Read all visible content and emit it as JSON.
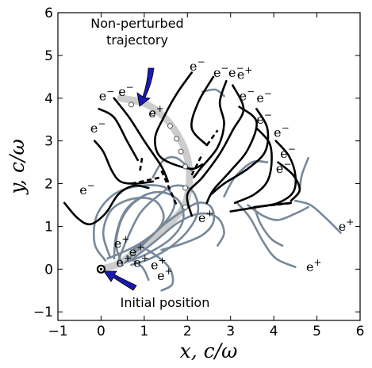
{
  "chart_data": {
    "type": "line",
    "title": "",
    "xlabel": "x,  c/ω",
    "ylabel": "y,  c/ω",
    "xlim": [
      -1,
      6
    ],
    "ylim": [
      -1.2,
      6
    ],
    "x_ticks": [
      "−1",
      "0",
      "1",
      "2",
      "3",
      "4",
      "5",
      "6"
    ],
    "y_ticks": [
      "−1",
      "0",
      "1",
      "2",
      "3",
      "4",
      "5",
      "6"
    ],
    "x_tick_values": [
      -1,
      0,
      1,
      2,
      3,
      4,
      5,
      6
    ],
    "y_tick_values": [
      -1,
      0,
      1,
      2,
      3,
      4,
      5,
      6
    ],
    "grid": false,
    "colors": {
      "electron": "#000000",
      "positron": "#778899",
      "unperturbed": "#cccccc",
      "arrow": "#1a1ab0"
    },
    "annotations": {
      "unperturbed": {
        "line1": "Non-perturbed",
        "line2": "trajectory"
      },
      "initial": "Initial position"
    },
    "initial_position": [
      0,
      0
    ],
    "unperturbed_trajectory": [
      [
        0,
        0
      ],
      [
        0.45,
        0.15
      ],
      [
        0.95,
        0.55
      ],
      [
        1.45,
        0.95
      ],
      [
        1.85,
        1.35
      ],
      [
        2.0,
        1.7
      ],
      [
        2.05,
        2.2
      ],
      [
        2.0,
        2.6
      ],
      [
        1.85,
        3.0
      ],
      [
        1.6,
        3.4
      ],
      [
        1.3,
        3.7
      ],
      [
        0.95,
        3.9
      ],
      [
        0.45,
        4.0
      ]
    ],
    "unperturbed_markers": [
      [
        0.7,
        3.85
      ],
      [
        1.2,
        3.65
      ],
      [
        1.6,
        3.35
      ],
      [
        1.75,
        3.05
      ],
      [
        1.85,
        2.75
      ],
      [
        1.95,
        2.4
      ],
      [
        1.95,
        1.9
      ],
      [
        1.95,
        1.45
      ]
    ],
    "electron_tracks": [
      [
        [
          -0.85,
          1.55
        ],
        [
          -0.55,
          1.2
        ],
        [
          -0.25,
          1.05
        ],
        [
          0.1,
          1.3
        ],
        [
          0.4,
          1.75
        ],
        [
          0.75,
          1.95
        ],
        [
          1.1,
          1.9
        ]
      ],
      [
        [
          -0.15,
          3.0
        ],
        [
          0.05,
          2.75
        ],
        [
          0.25,
          2.3
        ],
        [
          0.45,
          2.05
        ],
        [
          0.8,
          2.0
        ],
        [
          1.2,
          2.05
        ]
      ],
      [
        [
          -0.05,
          3.75
        ],
        [
          0.3,
          3.55
        ],
        [
          0.6,
          3.0
        ],
        [
          0.85,
          2.55
        ]
      ],
      [
        [
          0.3,
          4.0
        ],
        [
          0.65,
          3.55
        ],
        [
          1.0,
          3.0
        ],
        [
          1.4,
          2.4
        ],
        [
          1.55,
          2.05
        ]
      ],
      [
        [
          2.1,
          4.6
        ],
        [
          1.75,
          4.1
        ],
        [
          1.45,
          3.55
        ],
        [
          1.25,
          3.05
        ],
        [
          1.4,
          2.6
        ],
        [
          2.05,
          2.35
        ],
        [
          2.35,
          2.45
        ]
      ],
      [
        [
          2.6,
          4.5
        ],
        [
          2.25,
          3.9
        ],
        [
          2.1,
          3.3
        ],
        [
          2.45,
          2.9
        ]
      ],
      [
        [
          2.9,
          4.4
        ],
        [
          2.75,
          3.9
        ],
        [
          2.85,
          3.4
        ],
        [
          2.7,
          2.85
        ],
        [
          2.3,
          2.35
        ],
        [
          2.15,
          2.15
        ]
      ],
      [
        [
          3.05,
          4.3
        ],
        [
          3.3,
          3.75
        ],
        [
          3.05,
          3.25
        ],
        [
          2.75,
          2.7
        ],
        [
          2.35,
          2.15
        ],
        [
          2.0,
          1.75
        ],
        [
          2.1,
          1.25
        ]
      ],
      [
        [
          3.2,
          3.8
        ],
        [
          3.6,
          3.45
        ],
        [
          3.4,
          2.8
        ],
        [
          3.0,
          2.3
        ],
        [
          2.6,
          1.85
        ],
        [
          2.45,
          1.55
        ]
      ],
      [
        [
          3.6,
          3.75
        ],
        [
          3.85,
          3.3
        ],
        [
          3.8,
          2.75
        ],
        [
          3.4,
          2.35
        ],
        [
          2.85,
          2.0
        ],
        [
          2.55,
          1.75
        ]
      ],
      [
        [
          3.6,
          3.3
        ],
        [
          3.9,
          2.95
        ],
        [
          3.95,
          2.5
        ],
        [
          3.85,
          2.05
        ],
        [
          3.55,
          1.75
        ],
        [
          3.1,
          1.55
        ]
      ],
      [
        [
          4.05,
          3.0
        ],
        [
          4.35,
          2.65
        ],
        [
          4.5,
          2.2
        ],
        [
          4.45,
          1.8
        ],
        [
          4.1,
          1.55
        ],
        [
          3.6,
          1.45
        ],
        [
          3.0,
          1.35
        ]
      ],
      [
        [
          4.1,
          2.5
        ],
        [
          4.45,
          2.2
        ],
        [
          4.6,
          1.85
        ],
        [
          4.4,
          1.6
        ]
      ],
      [
        [
          4.4,
          1.55
        ],
        [
          3.95,
          1.5
        ],
        [
          3.55,
          1.45
        ]
      ]
    ],
    "electron_dashes": [
      [
        [
          0.7,
          2.0
        ],
        [
          1.4,
          2.15
        ]
      ],
      [
        [
          1.4,
          2.3
        ],
        [
          1.75,
          1.5
        ]
      ],
      [
        [
          0.95,
          2.6
        ],
        [
          0.9,
          2.3
        ]
      ],
      [
        [
          2.45,
          2.9
        ],
        [
          2.7,
          3.25
        ]
      ],
      [
        [
          2.1,
          2.2
        ],
        [
          2.35,
          2.7
        ]
      ],
      [
        [
          3.55,
          1.45
        ],
        [
          4.45,
          1.55
        ]
      ]
    ],
    "positron_tracks": [
      [
        [
          0.1,
          0.2
        ],
        [
          -0.15,
          0.6
        ],
        [
          -0.1,
          1.25
        ],
        [
          0.3,
          1.75
        ],
        [
          0.9,
          1.95
        ],
        [
          1.5,
          1.9
        ],
        [
          1.7,
          1.5
        ],
        [
          1.4,
          1.0
        ],
        [
          0.9,
          0.6
        ],
        [
          0.4,
          0.35
        ],
        [
          0.15,
          0.25
        ]
      ],
      [
        [
          0.2,
          0.3
        ],
        [
          0.05,
          0.85
        ],
        [
          0.25,
          1.4
        ],
        [
          0.75,
          1.65
        ],
        [
          1.25,
          1.6
        ],
        [
          1.45,
          1.2
        ],
        [
          1.2,
          0.8
        ],
        [
          0.75,
          0.45
        ]
      ],
      [
        [
          0.3,
          0.25
        ],
        [
          0.35,
          0.8
        ],
        [
          0.55,
          1.35
        ],
        [
          0.95,
          1.7
        ],
        [
          1.4,
          1.8
        ],
        [
          1.8,
          1.6
        ],
        [
          1.9,
          1.15
        ],
        [
          1.6,
          0.7
        ],
        [
          1.05,
          0.35
        ],
        [
          0.55,
          0.15
        ]
      ],
      [
        [
          0.4,
          0.2
        ],
        [
          0.6,
          0.7
        ],
        [
          0.9,
          1.3
        ],
        [
          1.3,
          1.7
        ],
        [
          1.7,
          1.95
        ],
        [
          2.1,
          1.85
        ],
        [
          2.25,
          1.4
        ],
        [
          2.05,
          0.95
        ],
        [
          1.65,
          0.55
        ],
        [
          1.15,
          0.25
        ],
        [
          0.7,
          0.1
        ]
      ],
      [
        [
          0.55,
          0.15
        ],
        [
          0.9,
          0.5
        ],
        [
          1.35,
          0.95
        ],
        [
          1.8,
          1.3
        ],
        [
          2.25,
          1.55
        ],
        [
          2.55,
          1.45
        ],
        [
          2.6,
          1.1
        ],
        [
          2.35,
          0.8
        ],
        [
          1.9,
          0.6
        ],
        [
          1.4,
          0.45
        ]
      ],
      [
        [
          0.75,
          0.25
        ],
        [
          1.25,
          0.65
        ],
        [
          1.8,
          1.1
        ],
        [
          2.3,
          1.3
        ],
        [
          2.7,
          1.2
        ],
        [
          2.85,
          0.85
        ],
        [
          2.7,
          0.55
        ]
      ],
      [
        [
          0.5,
          0.1
        ],
        [
          0.35,
          0.55
        ],
        [
          0.45,
          1.1
        ],
        [
          0.7,
          1.5
        ],
        [
          1.05,
          1.75
        ]
      ],
      [
        [
          0.9,
          0.55
        ],
        [
          1.3,
          0.3
        ],
        [
          1.6,
          0.0
        ],
        [
          1.65,
          -0.35
        ],
        [
          1.4,
          -0.5
        ]
      ],
      [
        [
          0.6,
          0.3
        ],
        [
          0.95,
          0.05
        ],
        [
          1.1,
          -0.25
        ]
      ],
      [
        [
          2.85,
          1.7
        ],
        [
          3.1,
          2.15
        ],
        [
          3.5,
          2.5
        ],
        [
          3.85,
          2.5
        ]
      ],
      [
        [
          2.1,
          2.3
        ],
        [
          1.75,
          2.6
        ],
        [
          1.45,
          2.55
        ],
        [
          1.2,
          2.15
        ]
      ],
      [
        [
          3.15,
          1.55
        ],
        [
          3.45,
          1.2
        ],
        [
          3.75,
          0.65
        ],
        [
          4.05,
          0.25
        ],
        [
          4.5,
          0.05
        ]
      ],
      [
        [
          3.4,
          1.5
        ],
        [
          3.75,
          1.25
        ],
        [
          4.1,
          1.15
        ],
        [
          4.5,
          1.3
        ],
        [
          4.8,
          1.45
        ]
      ],
      [
        [
          3.55,
          1.45
        ],
        [
          3.7,
          1.05
        ],
        [
          3.95,
          0.7
        ],
        [
          4.2,
          0.55
        ]
      ],
      [
        [
          4.5,
          1.6
        ],
        [
          4.85,
          1.5
        ],
        [
          5.2,
          1.2
        ],
        [
          5.55,
          0.85
        ]
      ],
      [
        [
          4.8,
          2.6
        ],
        [
          4.65,
          2.2
        ],
        [
          4.6,
          1.85
        ]
      ],
      [
        [
          2.35,
          4.15
        ],
        [
          2.65,
          4.2
        ],
        [
          2.85,
          4.05
        ]
      ]
    ],
    "labels": [
      {
        "text": "e",
        "sup": "−",
        "x": -0.5,
        "y": 1.75
      },
      {
        "text": "e",
        "sup": "−",
        "x": -0.25,
        "y": 3.2
      },
      {
        "text": "e",
        "sup": "−",
        "x": -0.05,
        "y": 3.95
      },
      {
        "text": "e",
        "sup": "−",
        "x": 0.4,
        "y": 4.05
      },
      {
        "text": "e",
        "sup": "+",
        "x": 1.1,
        "y": 3.55
      },
      {
        "text": "e",
        "sup": "−",
        "x": 2.05,
        "y": 4.65
      },
      {
        "text": "e",
        "sup": "−",
        "x": 2.6,
        "y": 4.5
      },
      {
        "text": "e",
        "sup": "−",
        "x": 2.95,
        "y": 4.5
      },
      {
        "text": "e",
        "sup": "+",
        "x": 3.15,
        "y": 4.45
      },
      {
        "text": "e",
        "sup": "−",
        "x": 3.2,
        "y": 3.95
      },
      {
        "text": "e",
        "sup": "−",
        "x": 3.6,
        "y": 3.9
      },
      {
        "text": "e",
        "sup": "−",
        "x": 3.6,
        "y": 3.4
      },
      {
        "text": "e",
        "sup": "−",
        "x": 4.0,
        "y": 3.1
      },
      {
        "text": "e",
        "sup": "−",
        "x": 4.15,
        "y": 2.6
      },
      {
        "text": "e",
        "sup": "−",
        "x": 4.05,
        "y": 2.25
      },
      {
        "text": "e",
        "sup": "+",
        "x": 2.25,
        "y": 1.1
      },
      {
        "text": "e",
        "sup": "+",
        "x": 5.5,
        "y": 0.9
      },
      {
        "text": "e",
        "sup": "+",
        "x": 4.75,
        "y": -0.05
      },
      {
        "text": "e",
        "sup": "+",
        "x": 0.3,
        "y": 0.5
      },
      {
        "text": "e",
        "sup": "+",
        "x": 0.65,
        "y": 0.3
      },
      {
        "text": "e",
        "sup": "+",
        "x": 0.35,
        "y": 0.05
      },
      {
        "text": "e",
        "sup": "+",
        "x": 0.75,
        "y": 0.05
      },
      {
        "text": "e",
        "sup": "+",
        "x": 1.15,
        "y": 0.0
      },
      {
        "text": "e",
        "sup": "+",
        "x": 1.3,
        "y": -0.25
      }
    ]
  }
}
